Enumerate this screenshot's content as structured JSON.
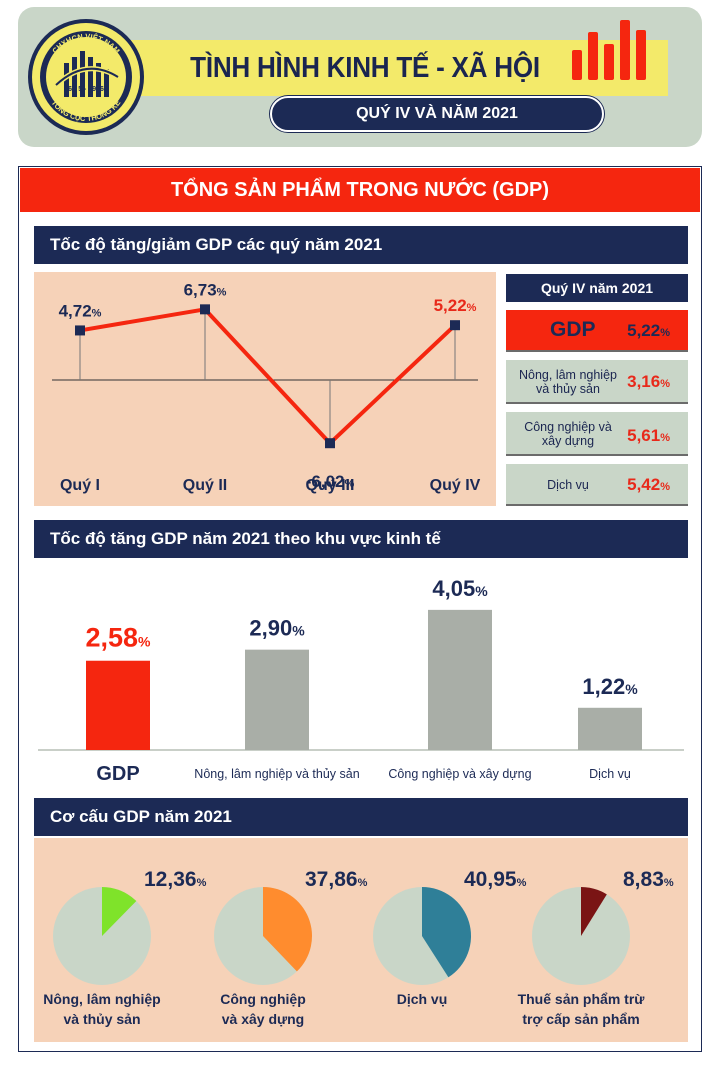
{
  "header": {
    "logo_text_top": "CHXHCN VIỆT NAM",
    "logo_date": "6 - 5 - 1946",
    "logo_text_bottom": "TỔNG CỤC THỐNG KÊ",
    "title": "TÌNH HÌNH KINH TẾ - XÃ HỘI",
    "subtitle": "QUÝ IV VÀ NĂM 2021",
    "bars_icon": "bar-chart-icon"
  },
  "banner": "TỔNG SẢN PHẨM TRONG NƯỚC (GDP)",
  "sections": {
    "quarterly": "Tốc độ tăng/giảm GDP các quý năm 2021",
    "sectors": "Tốc độ tăng GDP năm 2021 theo khu vực kinh tế",
    "structure": "Cơ cấu GDP năm 2021"
  },
  "q4_panel": {
    "header": "Quý IV năm 2021",
    "gdp": {
      "label": "GDP",
      "value": "5,22",
      "unit": "%"
    },
    "items": [
      {
        "label_line1": "Nông, lâm nghiệp",
        "label_line2": "và thủy sản",
        "value": "3,16",
        "unit": "%"
      },
      {
        "label_line1": "Công nghiệp và",
        "label_line2": "xây dựng",
        "value": "5,61",
        "unit": "%"
      },
      {
        "label_line1": "Dịch vụ",
        "label_line2": "",
        "value": "5,42",
        "unit": "%"
      }
    ]
  },
  "colors": {
    "navy": "#1c2a55",
    "red": "#f5260f",
    "gray_bar": "#a9aea7",
    "peach": "#f6d2b8",
    "pie_base": "#c9d6c8",
    "green": "#7fe32a",
    "orange": "#ff8c2e",
    "teal": "#2f7f98",
    "maroon": "#7a1414"
  },
  "chart_data": [
    {
      "type": "line",
      "title": "Tốc độ tăng/giảm GDP các quý năm 2021",
      "categories": [
        "Quý I",
        "Quý II",
        "Quý III",
        "Quý IV"
      ],
      "values": [
        4.72,
        6.73,
        -6.02,
        5.22
      ],
      "labels": [
        "4,72",
        "6,73",
        "-6,02",
        "5,22"
      ],
      "unit": "%",
      "ylim": [
        -8,
        9
      ]
    },
    {
      "type": "bar",
      "title": "Tốc độ tăng GDP năm 2021 theo khu vực kinh tế",
      "categories": [
        "GDP",
        "Nông, lâm nghiệp và thủy sản",
        "Công nghiệp và xây dựng",
        "Dịch vụ"
      ],
      "values": [
        2.58,
        2.9,
        4.05,
        1.22
      ],
      "labels": [
        "2,58",
        "2,90",
        "4,05",
        "1,22"
      ],
      "unit": "%",
      "ylim": [
        0,
        4.5
      ]
    },
    {
      "type": "pie",
      "title": "Cơ cấu GDP năm 2021",
      "items": [
        {
          "label_line1": "Nông, lâm nghiệp",
          "label_line2": "và thủy sản",
          "value": 12.36,
          "label": "12,36",
          "color": "#7fe32a"
        },
        {
          "label_line1": "Công nghiệp",
          "label_line2": "và xây dựng",
          "value": 37.86,
          "label": "37,86",
          "color": "#ff8c2e"
        },
        {
          "label_line1": "Dịch vụ",
          "label_line2": "",
          "value": 40.95,
          "label": "40,95",
          "color": "#2f7f98"
        },
        {
          "label_line1": "Thuế sản phẩm trừ",
          "label_line2": "trợ cấp sản phẩm",
          "value": 8.83,
          "label": "8,83",
          "color": "#7a1414"
        }
      ],
      "unit": "%"
    }
  ]
}
